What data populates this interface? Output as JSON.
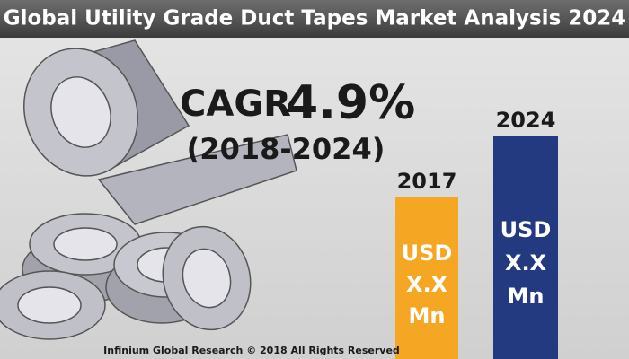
{
  "header": {
    "title": "Global Utility Grade Duct Tapes Market Analysis 2024"
  },
  "cagr": {
    "label": "CAGR",
    "value": "4.9%",
    "period": "(2018-2024)"
  },
  "bars": [
    {
      "year": "2017",
      "lines": [
        "USD",
        "X.X",
        "Mn"
      ]
    },
    {
      "year": "2024",
      "lines": [
        "USD",
        "X.X",
        "Mn"
      ]
    }
  ],
  "footer": "Infinium Global Research © 2018 All Rights Reserved"
}
